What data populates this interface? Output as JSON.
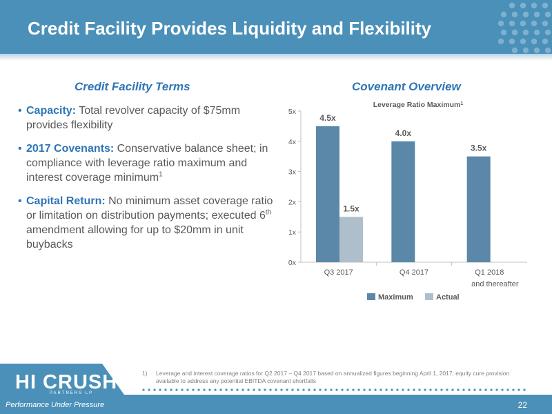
{
  "header": {
    "title": "Credit Facility Provides Liquidity and Flexibility"
  },
  "left": {
    "section_title": "Credit Facility Terms",
    "bullets": [
      {
        "head": "Capacity:",
        "text": " Total revolver capacity of $75mm provides flexibility"
      },
      {
        "head": "2017 Covenants:",
        "text": " Conservative balance sheet; in compliance with leverage ratio maximum and interest coverage minimum",
        "sup": "1"
      },
      {
        "head": "Capital Return:",
        "text_a": " No minimum asset coverage ratio or limitation on distribution payments; executed 6",
        "sup": "th",
        "text_b": " amendment allowing for up to $20mm in unit buybacks"
      }
    ]
  },
  "right": {
    "section_title": "Covenant Overview"
  },
  "chart_data": {
    "type": "bar",
    "title": "Leverage Ratio Maximum",
    "title_sup": "1",
    "categories": [
      "Q3 2017",
      "Q4 2017",
      "Q1 2018"
    ],
    "category_sublabels": [
      "",
      "",
      "and thereafter"
    ],
    "series": [
      {
        "name": "Maximum",
        "values": [
          4.5,
          4.0,
          3.5
        ],
        "labels": [
          "4.5x",
          "4.0x",
          "3.5x"
        ],
        "color": "#5b87a8"
      },
      {
        "name": "Actual",
        "values": [
          1.5,
          null,
          null
        ],
        "labels": [
          "1.5x",
          "",
          ""
        ],
        "color": "#aebfcb"
      }
    ],
    "y_ticks": [
      "0x",
      "1x",
      "2x",
      "3x",
      "4x",
      "5x"
    ],
    "ylim": [
      0,
      5
    ],
    "legend_position": "bottom",
    "grid": false
  },
  "footnote": {
    "num": "1)",
    "text": "Leverage and interest coverage ratios for Q2 2017 – Q4 2017 based on annualized figures beginning April 1, 2017; equity cure provision available to address any potential EBITDA covenant shortfalls"
  },
  "logo": {
    "name": "HI CRUSH",
    "sub": "PARTNERS LP",
    "tagline": "Performance Under Pressure"
  },
  "page_number": "22",
  "colors": {
    "header": "#4a90b8",
    "accent": "#2e75b6",
    "maximum_bar": "#5b87a8",
    "actual_bar": "#aebfcb"
  }
}
